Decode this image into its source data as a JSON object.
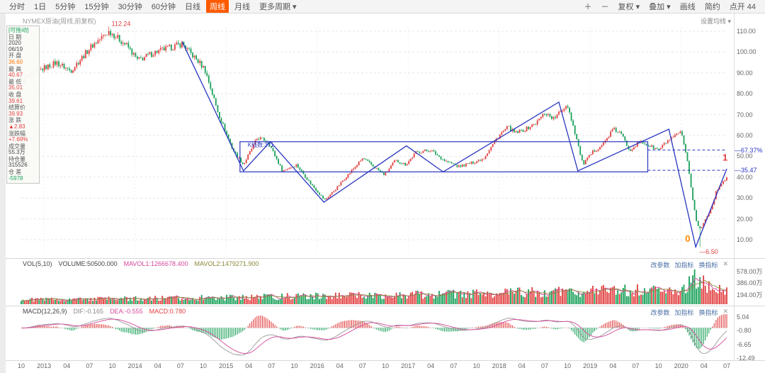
{
  "toolbar": {
    "left_items": [
      {
        "label": "分时",
        "active": false
      },
      {
        "label": "1日",
        "active": false
      },
      {
        "label": "5分钟",
        "active": false
      },
      {
        "label": "15分钟",
        "active": false
      },
      {
        "label": "30分钟",
        "active": false
      },
      {
        "label": "60分钟",
        "active": false
      },
      {
        "label": "日线",
        "active": false
      },
      {
        "label": "周线",
        "active": true
      },
      {
        "label": "月线",
        "active": false
      },
      {
        "label": "更多周期 ▾",
        "active": false
      }
    ],
    "right_items": [
      {
        "label": "＋"
      },
      {
        "label": "－"
      },
      {
        "label": "复权 ▾"
      },
      {
        "label": "叠加 ▾"
      },
      {
        "label": "画线"
      },
      {
        "label": "简约"
      },
      {
        "label": "点开 44"
      }
    ]
  },
  "chart_header": {
    "title": "NYMEX原油(周线,前复权)",
    "ma_setting": "设置均线 ▾"
  },
  "info_panel": {
    "drag_label": "[可拖动]",
    "rows": [
      {
        "label": "日 期",
        "values": [
          [
            "2020",
            "#444444"
          ],
          [
            "06/19",
            "#444444"
          ]
        ]
      },
      {
        "label": "开 盘",
        "values": [
          [
            "36.60",
            "#ff7300"
          ]
        ]
      },
      {
        "label": "最 高",
        "values": [
          [
            "40.67",
            "#e23e3e"
          ]
        ]
      },
      {
        "label": "最 低",
        "values": [
          [
            "35.01",
            "#e23e3e"
          ]
        ]
      },
      {
        "label": "收 盘",
        "values": [
          [
            "39.61",
            "#e23e3e"
          ]
        ]
      },
      {
        "label": "结算价",
        "values": [
          [
            "39.93",
            "#e23e3e"
          ]
        ]
      },
      {
        "label": "涨 跌",
        "values": [
          [
            "▲2.83",
            "#e23e3e"
          ]
        ]
      },
      {
        "label": "涨跌幅",
        "values": [
          [
            "+7.69%",
            "#e23e3e"
          ]
        ]
      },
      {
        "label": "成交量",
        "values": [
          [
            "55.3万",
            "#444444"
          ]
        ]
      },
      {
        "label": "持仓量",
        "values": [
          [
            "315526",
            "#444444"
          ]
        ]
      },
      {
        "label": "仓 差",
        "values": [
          [
            "-5978",
            "#18a058"
          ]
        ]
      }
    ]
  },
  "price_axis": [
    "110.00",
    "100.00",
    "90.00",
    "80.00",
    "70.00",
    "60.00",
    "50.00",
    "40.00",
    "30.00",
    "20.00",
    "10.00"
  ],
  "axis_annotations": [
    {
      "text": "—67.37%",
      "price": 53
    },
    {
      "text": "—35.47",
      "price": 43.3
    }
  ],
  "time_axis": [
    [
      "10",
      0
    ],
    [
      "2013",
      3
    ],
    [
      "04",
      6
    ],
    [
      "07",
      9
    ],
    [
      "10",
      12
    ],
    [
      "2014",
      15
    ],
    [
      "04",
      18
    ],
    [
      "07",
      21
    ],
    [
      "10",
      24
    ],
    [
      "2015",
      27
    ],
    [
      "04",
      30
    ],
    [
      "07",
      33
    ],
    [
      "10",
      36
    ],
    [
      "2016",
      39
    ],
    [
      "04",
      42
    ],
    [
      "07",
      45
    ],
    [
      "10",
      48
    ],
    [
      "2017",
      51
    ],
    [
      "04",
      54
    ],
    [
      "07",
      57
    ],
    [
      "10",
      60
    ],
    [
      "2018",
      63
    ],
    [
      "04",
      66
    ],
    [
      "07",
      69
    ],
    [
      "10",
      72
    ],
    [
      "2019",
      75
    ],
    [
      "04",
      78
    ],
    [
      "07",
      81
    ],
    [
      "10",
      84
    ],
    [
      "2020",
      87
    ],
    [
      "04",
      90
    ],
    [
      "07",
      93
    ]
  ],
  "volume_pane": {
    "header": [
      {
        "text": "VOL(5,10)",
        "color": "#444444"
      },
      {
        "text": "VOLUME:50500.000",
        "color": "#444444"
      },
      {
        "text": "MAVOL1:1266678.400",
        "color": "#d4489a"
      },
      {
        "text": "MAVOL2:1479271.900",
        "color": "#8a8a3a"
      }
    ],
    "tools": [
      "改参数",
      "加指标",
      "换指标"
    ],
    "close_icon": "✕",
    "axis_labels": [
      "578.00万",
      "386.00万",
      "194.00万"
    ],
    "axis_values": [
      578,
      386,
      194
    ]
  },
  "macd_pane": {
    "header": [
      {
        "text": "MACD(12,26,9)",
        "color": "#444444"
      },
      {
        "text": "DIF:-0.165",
        "color": "#888888"
      },
      {
        "text": "DEA:-0.555",
        "color": "#d4489a"
      },
      {
        "text": "MACD:0.780",
        "color": "#e23e3e"
      }
    ],
    "tools": [
      "改参数",
      "加指标",
      "换指标"
    ],
    "close_icon": "✕",
    "axis_labels": [
      "5.04",
      "-0.80",
      "-6.65",
      "-12.49"
    ],
    "axis_values": [
      5.04,
      -0.8,
      -6.65,
      -12.49
    ]
  },
  "chart_data": {
    "type": "candlestick",
    "symbol": "NYMEX原油",
    "period": "周线,前复权",
    "n_candles": 396,
    "y_range": [
      10,
      110
    ],
    "price_keypoints": [
      [
        0,
        86
      ],
      [
        0.03,
        92
      ],
      [
        0.05,
        95
      ],
      [
        0.07,
        91
      ],
      [
        0.1,
        103
      ],
      [
        0.125,
        110
      ],
      [
        0.15,
        103
      ],
      [
        0.165,
        96
      ],
      [
        0.19,
        100
      ],
      [
        0.21,
        102
      ],
      [
        0.228,
        104
      ],
      [
        0.26,
        92
      ],
      [
        0.28,
        70
      ],
      [
        0.3,
        53
      ],
      [
        0.315,
        46
      ],
      [
        0.335,
        59
      ],
      [
        0.35,
        57
      ],
      [
        0.37,
        43
      ],
      [
        0.39,
        46
      ],
      [
        0.41,
        37
      ],
      [
        0.43,
        29
      ],
      [
        0.445,
        34
      ],
      [
        0.46,
        40
      ],
      [
        0.484,
        49
      ],
      [
        0.5,
        45
      ],
      [
        0.515,
        41
      ],
      [
        0.53,
        48
      ],
      [
        0.545,
        46
      ],
      [
        0.56,
        52
      ],
      [
        0.58,
        53
      ],
      [
        0.6,
        48
      ],
      [
        0.62,
        45
      ],
      [
        0.64,
        47
      ],
      [
        0.655,
        49
      ],
      [
        0.677,
        60
      ],
      [
        0.69,
        64
      ],
      [
        0.7,
        61
      ],
      [
        0.715,
        63
      ],
      [
        0.73,
        66
      ],
      [
        0.742,
        71
      ],
      [
        0.755,
        68
      ],
      [
        0.774,
        75
      ],
      [
        0.786,
        60
      ],
      [
        0.796,
        46
      ],
      [
        0.81,
        52
      ],
      [
        0.825,
        56
      ],
      [
        0.839,
        63
      ],
      [
        0.85,
        61
      ],
      [
        0.862,
        53
      ],
      [
        0.877,
        57
      ],
      [
        0.89,
        55
      ],
      [
        0.903,
        53
      ],
      [
        0.915,
        57
      ],
      [
        0.925,
        59
      ],
      [
        0.935,
        62
      ],
      [
        0.945,
        46
      ],
      [
        0.952,
        29
      ],
      [
        0.958,
        17
      ],
      [
        0.963,
        15
      ],
      [
        0.97,
        20
      ],
      [
        0.978,
        25
      ],
      [
        0.985,
        33
      ],
      [
        0.992,
        37
      ],
      [
        1,
        39.6
      ]
    ],
    "extreme_high": {
      "f": 0.125,
      "value": 112.24
    },
    "extreme_low": {
      "f": 0.961,
      "value": 6.5
    },
    "volume_keypoints": [
      [
        0,
        110
      ],
      [
        0.2,
        140
      ],
      [
        0.35,
        180
      ],
      [
        0.5,
        210
      ],
      [
        0.6,
        240
      ],
      [
        0.7,
        280
      ],
      [
        0.78,
        310
      ],
      [
        0.85,
        330
      ],
      [
        0.9,
        340
      ],
      [
        0.94,
        380
      ],
      [
        0.955,
        578
      ],
      [
        0.965,
        520
      ],
      [
        0.98,
        430
      ],
      [
        1,
        300
      ]
    ],
    "volume_axis_max": 600,
    "drawings": {
      "zigzag": [
        [
          0.228,
          105
        ],
        [
          0.315,
          43
        ],
        [
          0.353,
          57
        ],
        [
          0.429,
          28
        ],
        [
          0.546,
          55
        ],
        [
          0.598,
          42.5
        ],
        [
          0.762,
          76
        ],
        [
          0.789,
          43
        ],
        [
          0.918,
          63
        ],
        [
          0.956,
          6.5
        ],
        [
          1.0,
          44
        ]
      ],
      "rectangle": {
        "x1": 0.31,
        "x2": 0.888,
        "top": 57,
        "bottom": 42.5
      },
      "ext_lines": [
        {
          "price": 53,
          "x1": 0.888,
          "x2": 1.0
        },
        {
          "price": 43.3,
          "x1": 0.888,
          "x2": 1.0
        }
      ]
    },
    "annotations": [
      {
        "text": "112.24",
        "f": 0.125,
        "price": 113.5,
        "color": "#e23e3e",
        "size": 9
      },
      {
        "text": "K线数:371",
        "f": 0.318,
        "price": 55.5,
        "color": "#2a35c0",
        "size": 8
      },
      {
        "text": "—6.50",
        "f": 0.958,
        "price": 4.2,
        "color": "#e23e3e",
        "size": 9
      },
      {
        "text": "0",
        "f": 0.938,
        "price": 10,
        "color": "#ff8800",
        "size": 13
      },
      {
        "text": "1",
        "f": 0.991,
        "price": 49,
        "color": "#e23e3e",
        "size": 13
      }
    ],
    "colors": {
      "up": "#e23e3e",
      "down": "#18a058",
      "drawing": "#2a35c0",
      "mavol1": "#d4489a",
      "mavol2": "#8a8a3a",
      "dif": "#999999",
      "dea": "#d4489a",
      "grid": "#e6e6e6"
    },
    "macd_settings": "MACD(12,26,9)",
    "vol_settings": "VOL(5,10)"
  }
}
